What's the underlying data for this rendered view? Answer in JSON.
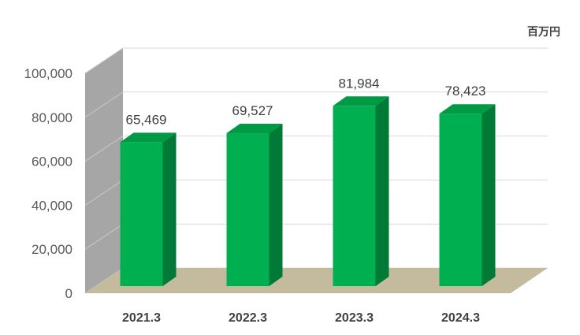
{
  "chart_data": {
    "type": "bar",
    "style": "3d-column",
    "unit_label": "百万円",
    "categories": [
      "2021.3",
      "2022.3",
      "2023.3",
      "2024.3"
    ],
    "values": [
      65469,
      69527,
      81984,
      78423
    ],
    "value_labels": [
      "65,469",
      "69,527",
      "81,984",
      "78,423"
    ],
    "yticks": [
      "0",
      "20,000",
      "40,000",
      "60,000",
      "80,000",
      "100,000"
    ],
    "ylim": [
      0,
      100000
    ],
    "grid": true,
    "colors": {
      "bar_front": "#00b050",
      "bar_side": "#007a36",
      "bar_top": "#009a45",
      "floor": "#c4bb9e",
      "left_wall": "#a6a6a6",
      "back_wall": "#ffffff",
      "grid": "#d9d9d9"
    }
  }
}
